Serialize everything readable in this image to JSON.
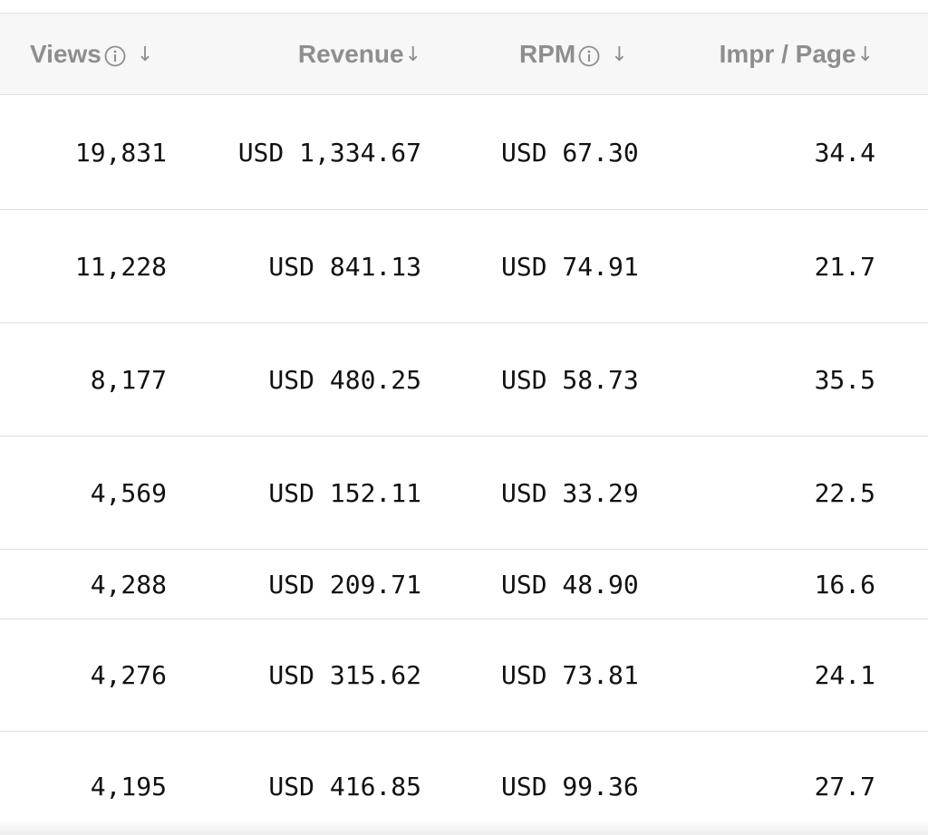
{
  "table": {
    "columns": [
      {
        "label": "Views",
        "has_info_icon": true,
        "sort_icon": "arrow-down-icon"
      },
      {
        "label": "Revenue",
        "has_info_icon": false,
        "sort_icon": "arrow-down-icon"
      },
      {
        "label": "RPM",
        "has_info_icon": true,
        "sort_icon": "arrow-down-icon"
      },
      {
        "label": "Impr / Page",
        "has_info_icon": false,
        "sort_icon": "arrow-down-icon"
      }
    ],
    "rows": [
      {
        "views": "19,831",
        "revenue": "USD 1,334.67",
        "rpm": "USD 67.30",
        "impr": "34.4"
      },
      {
        "views": "11,228",
        "revenue": "USD 841.13",
        "rpm": "USD 74.91",
        "impr": "21.7"
      },
      {
        "views": "8,177",
        "revenue": "USD 480.25",
        "rpm": "USD 58.73",
        "impr": "35.5"
      },
      {
        "views": "4,569",
        "revenue": "USD 152.11",
        "rpm": "USD 33.29",
        "impr": "22.5"
      },
      {
        "views": "4,288",
        "revenue": "USD 209.71",
        "rpm": "USD 48.90",
        "impr": "16.6"
      },
      {
        "views": "4,276",
        "revenue": "USD 315.62",
        "rpm": "USD 73.81",
        "impr": "24.1"
      },
      {
        "views": "4,195",
        "revenue": "USD 416.85",
        "rpm": "USD 99.36",
        "impr": "27.7"
      }
    ]
  },
  "colors": {
    "header_text": "#8e8e8e",
    "header_bg": "#f7f7f7",
    "cell_text": "#111111",
    "divider": "#dcdcdc"
  }
}
